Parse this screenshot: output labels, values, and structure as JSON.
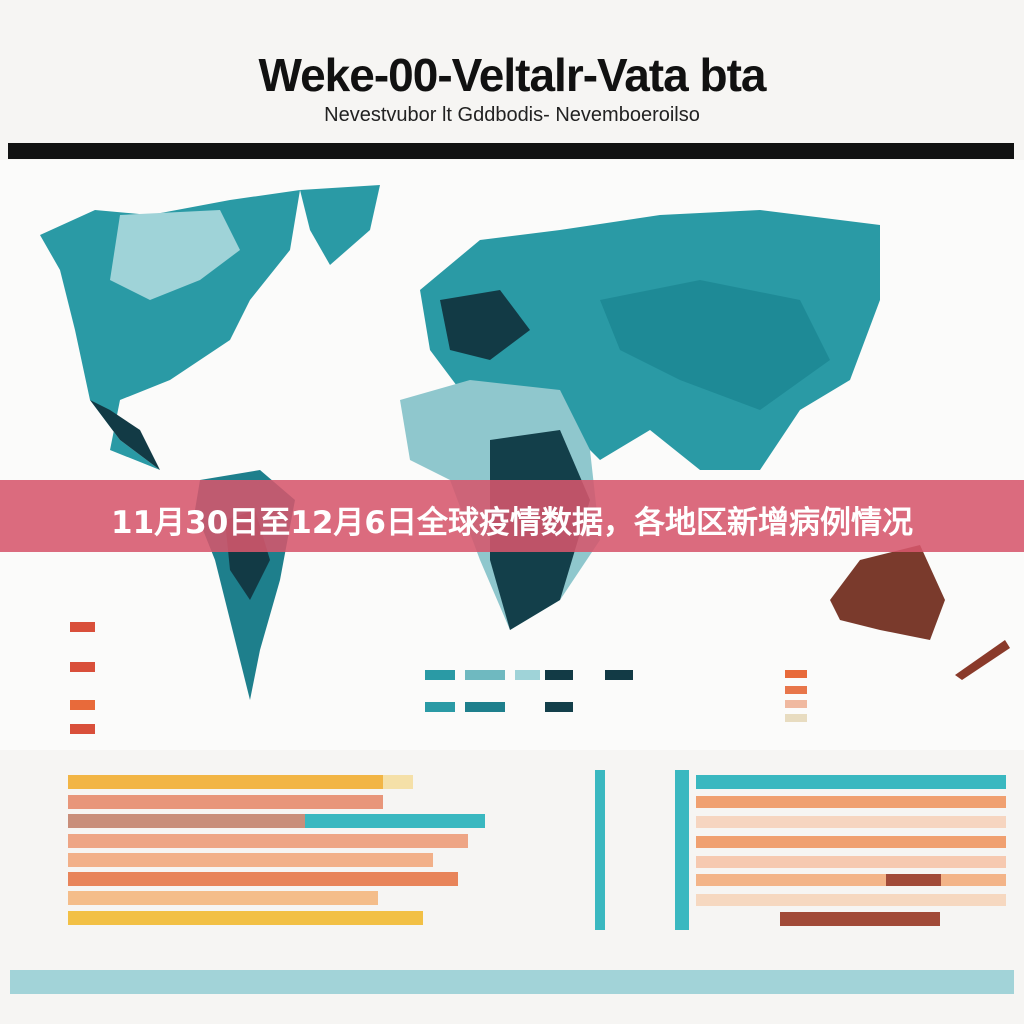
{
  "header": {
    "title": "Weke-00-Veltalr-Vata bta",
    "subtitle": "Nevestvubor lt Gddbodis- Nevemboeroilso"
  },
  "banner": {
    "text": "11月30日至12月6日全球疫情数据，各地区新增病例情况"
  }
}
